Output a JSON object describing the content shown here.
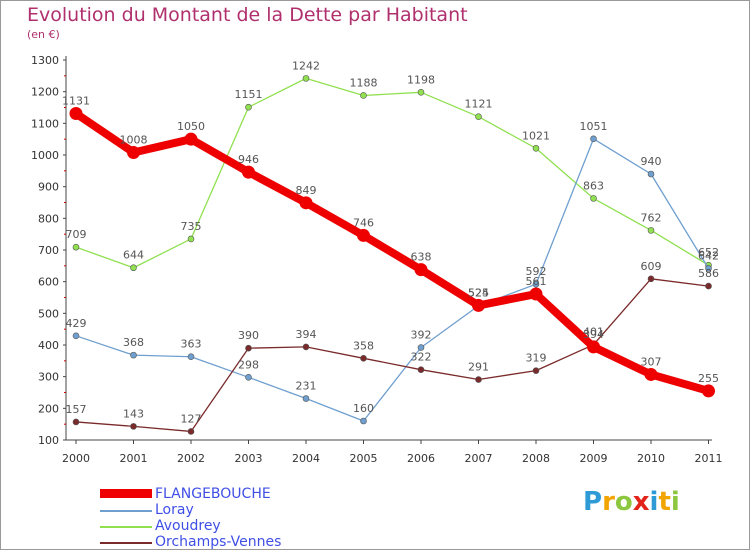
{
  "chart_data": {
    "type": "line",
    "title": "Evolution du Montant de la Dette par Habitant",
    "subtitle": "(en €)",
    "categories": [
      "2000",
      "2001",
      "2002",
      "2003",
      "2004",
      "2005",
      "2006",
      "2007",
      "2008",
      "2009",
      "2010",
      "2011"
    ],
    "ylim": [
      100,
      1300
    ],
    "yticks": [
      "100",
      "200",
      "300",
      "400",
      "500",
      "600",
      "700",
      "800",
      "900",
      "1000",
      "1100",
      "1200",
      "1300"
    ],
    "grid": false,
    "legend_position": "bottom-left",
    "series": [
      {
        "name": "FLANGEBOUCHE",
        "color": "#ee0000",
        "values": [
          1131,
          1008,
          1050,
          946,
          849,
          746,
          638,
          525,
          561,
          394,
          307,
          255
        ]
      },
      {
        "name": "Loray",
        "color": "#6f9fcf",
        "values": [
          429,
          368,
          363,
          298,
          231,
          160,
          392,
          524,
          592,
          1051,
          940,
          642
        ]
      },
      {
        "name": "Avoudrey",
        "color": "#90e050",
        "values": [
          709,
          644,
          735,
          1151,
          1242,
          1188,
          1198,
          1121,
          1021,
          863,
          762,
          652
        ]
      },
      {
        "name": "Orchamps-Vennes",
        "color": "#7a2a2a",
        "values": [
          157,
          143,
          127,
          390,
          394,
          358,
          322,
          291,
          319,
          401,
          609,
          586
        ]
      }
    ]
  },
  "logo": {
    "letters": [
      "P",
      "r",
      "o",
      "x",
      "i",
      "t",
      "i"
    ],
    "colors": [
      "#2e9bd6",
      "#f2a400",
      "#8dc63f",
      "#e2231a",
      "#2e9bd6",
      "#f2a400",
      "#8dc63f"
    ]
  }
}
